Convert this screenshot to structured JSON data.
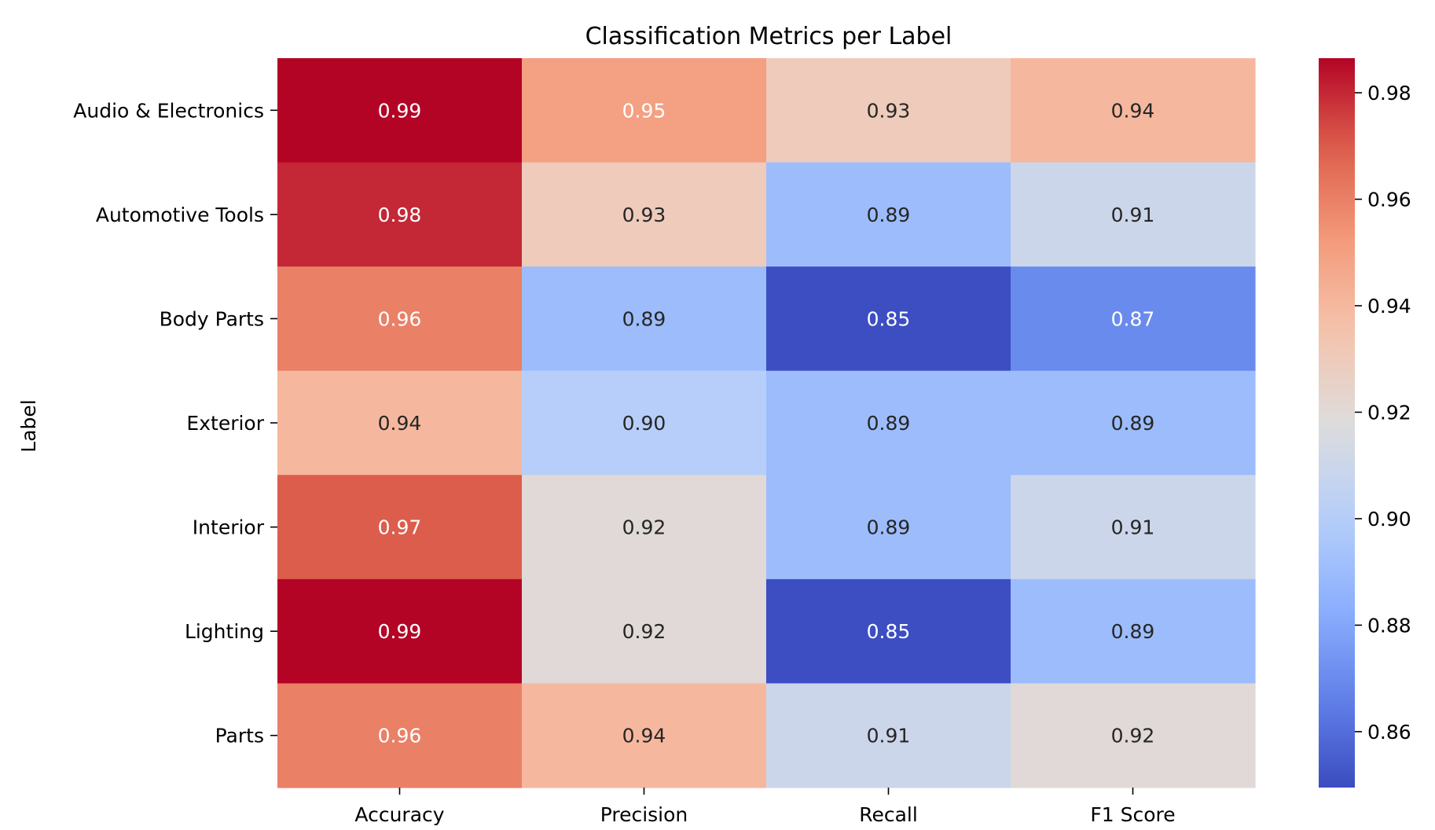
{
  "chart_data": {
    "type": "heatmap",
    "title": "Classification Metrics per Label",
    "xlabel": "",
    "ylabel": "Label",
    "columns": [
      "Accuracy",
      "Precision",
      "Recall",
      "F1 Score"
    ],
    "rows": [
      "Audio & Electronics",
      "Automotive Tools",
      "Body Parts",
      "Exterior",
      "Interior",
      "Lighting",
      "Parts"
    ],
    "values": [
      [
        0.99,
        0.95,
        0.93,
        0.94
      ],
      [
        0.98,
        0.93,
        0.89,
        0.91
      ],
      [
        0.96,
        0.89,
        0.85,
        0.87
      ],
      [
        0.94,
        0.9,
        0.89,
        0.89
      ],
      [
        0.97,
        0.92,
        0.89,
        0.91
      ],
      [
        0.99,
        0.92,
        0.85,
        0.89
      ],
      [
        0.96,
        0.94,
        0.91,
        0.92
      ]
    ],
    "annotations": [
      [
        "0.99",
        "0.95",
        "0.93",
        "0.94"
      ],
      [
        "0.98",
        "0.93",
        "0.89",
        "0.91"
      ],
      [
        "0.96",
        "0.89",
        "0.85",
        "0.87"
      ],
      [
        "0.94",
        "0.90",
        "0.89",
        "0.89"
      ],
      [
        "0.97",
        "0.92",
        "0.89",
        "0.91"
      ],
      [
        "0.99",
        "0.92",
        "0.85",
        "0.89"
      ],
      [
        "0.96",
        "0.94",
        "0.91",
        "0.92"
      ]
    ],
    "colormap": "coolwarm",
    "color_range": [
      0.8495,
      0.9865
    ],
    "colorbar": {
      "ticks": [
        0.86,
        0.88,
        0.9,
        0.92,
        0.94,
        0.96,
        0.98
      ],
      "tick_labels": [
        "0.86",
        "0.88",
        "0.90",
        "0.92",
        "0.94",
        "0.96",
        "0.98"
      ]
    },
    "grid": false,
    "legend": "colorbar-right"
  }
}
